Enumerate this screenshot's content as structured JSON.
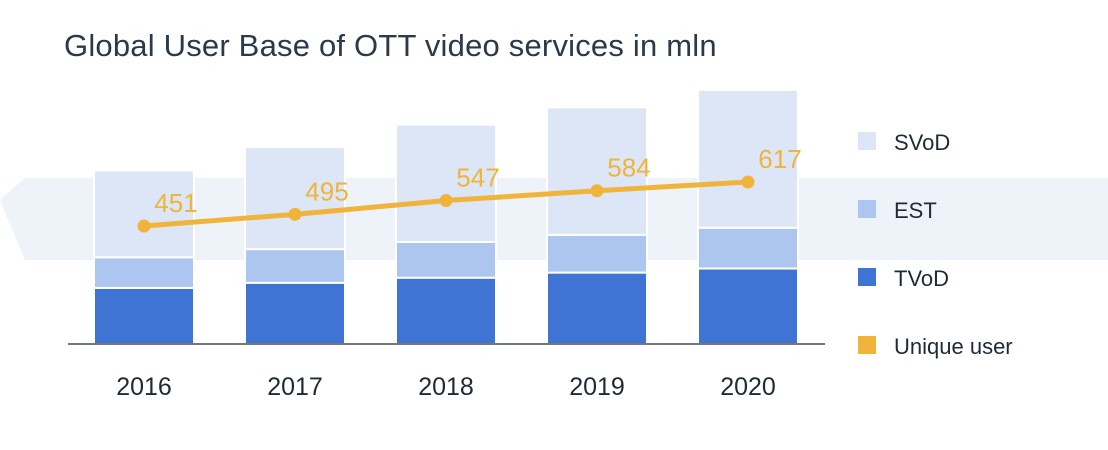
{
  "chart_data": {
    "type": "bar",
    "stacked": true,
    "title": "Global User Base of OTT video services in mln",
    "categories": [
      "2016",
      "2017",
      "2018",
      "2019",
      "2020"
    ],
    "series": [
      {
        "name": "TVoD",
        "kind": "bar",
        "color": "#3f74d4",
        "values": [
          55,
          60,
          65,
          70,
          74
        ]
      },
      {
        "name": "EST",
        "kind": "bar",
        "color": "#adc6ef",
        "values": [
          30,
          33,
          35,
          37,
          40
        ]
      },
      {
        "name": "SVoD",
        "kind": "bar",
        "color": "#dce6f6",
        "values": [
          85,
          100,
          115,
          125,
          135
        ]
      },
      {
        "name": "Unique user",
        "kind": "line",
        "color": "#f0b43a",
        "values": [
          451,
          495,
          547,
          584,
          617
        ]
      }
    ],
    "legend_position": "right",
    "grid": false
  }
}
